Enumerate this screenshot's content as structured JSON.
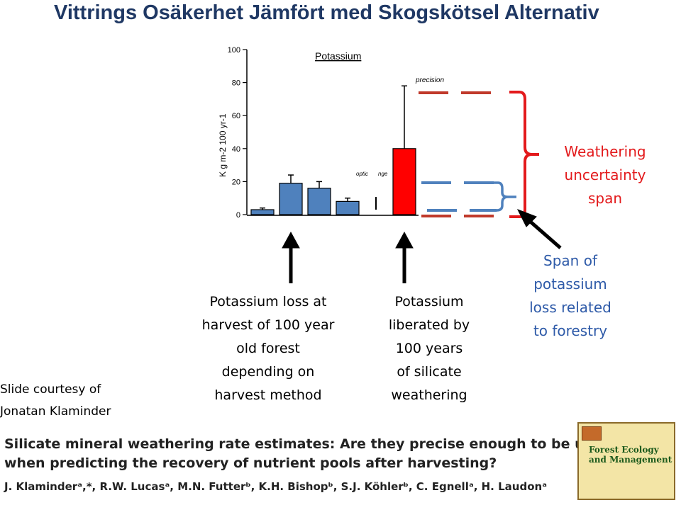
{
  "slide": {
    "title": "Vittrings Osäkerhet Jämfört med Skogskötsel Alternativ",
    "courtesy_line1": "Slide courtesy of",
    "courtesy_line2": "Jonatan Klaminder",
    "weathering_note_1": "Weathering",
    "weathering_note_2": "uncertainty",
    "weathering_note_3": "span",
    "span_note_1": "Span of",
    "span_note_2": "potassium",
    "span_note_3": "loss related",
    "span_note_4": "to forestry",
    "harvest_note_1": "Potassium loss at",
    "harvest_note_2": "harvest of 100 year",
    "harvest_note_3": "old forest",
    "harvest_note_4": "depending on",
    "harvest_note_5": "harvest method",
    "weathering_liberated_1": "Potassium",
    "weathering_liberated_2": "liberated by",
    "weathering_liberated_3": "100 years",
    "weathering_liberated_4": "of silicate",
    "weathering_liberated_5": "weathering",
    "ref_title_1": "Silicate mineral weathering rate estimates: Are they precise enough to be useful",
    "ref_title_2": "when predicting the recovery of nutrient pools after harvesting?",
    "ref_authors": "J. Klaminderᵃ,*, R.W. Lucasᵃ, M.N. Futterᵇ, K.H. Bishopᵇ, S.J. Köhlerᵇ, C. Egnellᵃ, H. Laudonᵃ",
    "journal_cover_text": "Forest Ecology and Management"
  },
  "colors": {
    "title": "#1f3864",
    "harvest_bars": "#4f81bd",
    "weathering_bar": "#ff0000",
    "red_note": "#e31a1c",
    "blue_note": "#2e5aa8"
  },
  "chart_data": {
    "type": "bar",
    "title": "Potassium",
    "ylabel": "K g m-2 100 yr-1",
    "ylim": [
      0,
      100
    ],
    "yticks": [
      "0",
      "20",
      "40",
      "60",
      "80",
      "100"
    ],
    "annotations": [
      "precision",
      "optic",
      "nge"
    ],
    "series": [
      {
        "values": [
          3,
          19,
          16,
          8
        ],
        "errors": [
          1,
          5,
          4,
          2
        ]
      },
      {
        "values": [
          40
        ],
        "errors": [
          38
        ]
      }
    ]
  }
}
